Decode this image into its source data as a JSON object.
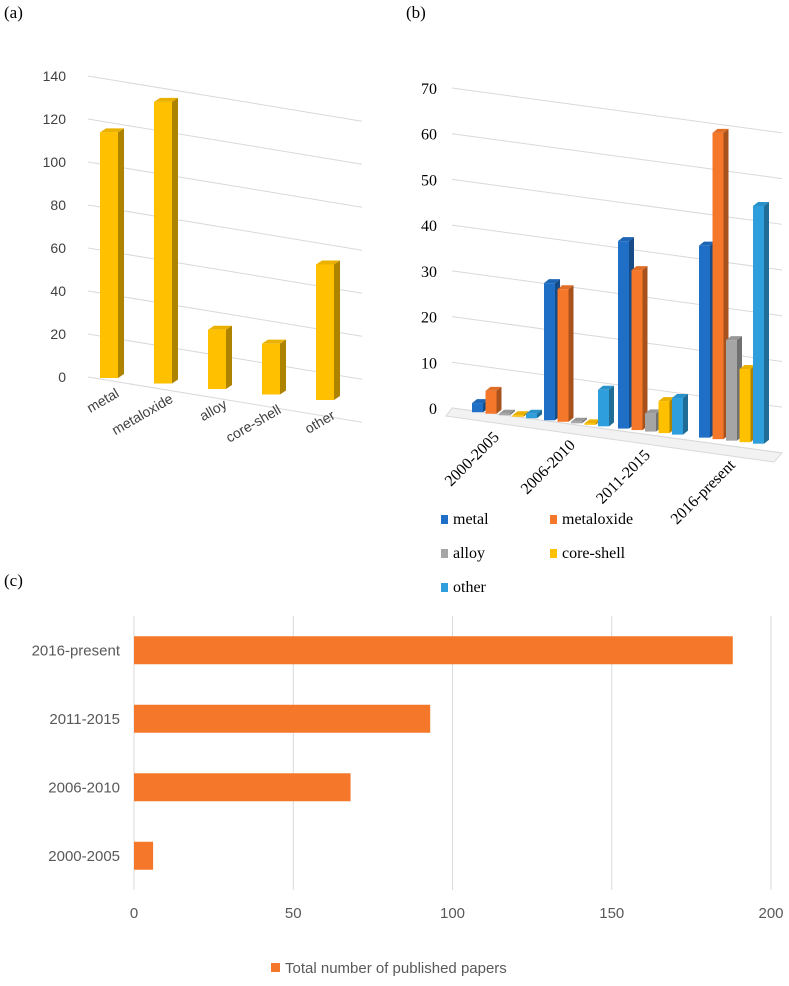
{
  "panels": {
    "a": "(a)",
    "b": "(b)",
    "c": "(c)"
  },
  "colors": {
    "gold": "#FFC000",
    "metal": "#1F6FC6",
    "metaloxide": "#F5782A",
    "alloy": "#A5A5A5",
    "core_shell": "#FFC000",
    "other": "#2E9FDC",
    "bar_c": "#F5782A",
    "grid": "#D9D9D9"
  },
  "chart_data": [
    {
      "id": "a",
      "type": "bar",
      "title": "",
      "categories": [
        "metal",
        "metaloxide",
        "alloy",
        "core-shell",
        "other"
      ],
      "values": [
        116,
        133,
        28,
        24,
        64
      ],
      "ylim": [
        0,
        140
      ],
      "yticks": [
        "0",
        "20",
        "40",
        "60",
        "80",
        "100",
        "120",
        "140"
      ],
      "grid": true
    },
    {
      "id": "b",
      "type": "bar",
      "title": "",
      "categories": [
        "2000-2005",
        "2006-2010",
        "2011-2015",
        "2016-present"
      ],
      "series": [
        {
          "name": "metal",
          "values": [
            2,
            30,
            41,
            42
          ]
        },
        {
          "name": "metaloxide",
          "values": [
            5,
            29,
            35,
            67
          ]
        },
        {
          "name": "alloy",
          "values": [
            0,
            0,
            4,
            22
          ]
        },
        {
          "name": "core-shell",
          "values": [
            0,
            0,
            7,
            16
          ]
        },
        {
          "name": "other",
          "values": [
            1,
            8,
            8,
            52
          ]
        }
      ],
      "ylim": [
        0,
        70
      ],
      "yticks": [
        "0",
        "10",
        "20",
        "30",
        "40",
        "50",
        "60",
        "70"
      ],
      "legend": [
        "metal",
        "metaloxide",
        "alloy",
        "core-shell",
        "other"
      ],
      "grid": true
    },
    {
      "id": "c",
      "type": "bar",
      "orientation": "horizontal",
      "title": "",
      "categories": [
        "2016-present",
        "2011-2015",
        "2006-2010",
        "2000-2005"
      ],
      "values": [
        188,
        93,
        68,
        6
      ],
      "xlim": [
        0,
        200
      ],
      "xticks": [
        "0",
        "50",
        "100",
        "150",
        "200"
      ],
      "legend": "Total number of published papers",
      "grid": true
    }
  ]
}
